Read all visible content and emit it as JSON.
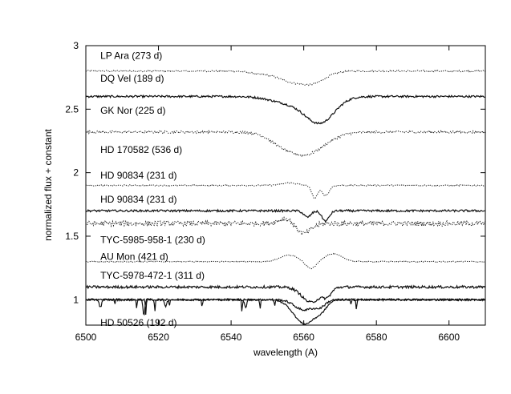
{
  "chart_data": {
    "type": "line",
    "title": "",
    "xlabel": "wavelength (A)",
    "ylabel": "normalized flux + constant",
    "xlim": [
      6500,
      6610
    ],
    "ylim": [
      0.8,
      3.0
    ],
    "xticks": [
      6500,
      6520,
      6540,
      6560,
      6580,
      6600
    ],
    "xtick_labels": [
      "6500",
      "6520",
      "6540",
      "6560",
      "6580",
      "6600"
    ],
    "yticks": [
      1.0,
      1.5,
      2.0,
      2.5,
      3.0
    ],
    "ytick_labels": [
      "1",
      "1.5",
      "2",
      "2.5",
      "3"
    ],
    "grid": false,
    "legend": "inline-labels",
    "series": [
      {
        "name": "LP Ara (273 d)",
        "label_y": 2.92,
        "style": "dotted",
        "baseline": 2.8,
        "noise": 0.006,
        "features": [
          [
            6556,
            -0.07,
            3.5
          ],
          [
            6562.5,
            -0.09,
            3.5
          ],
          [
            6548,
            -0.02,
            3
          ]
        ]
      },
      {
        "name": "DQ Vel (189 d)",
        "label_y": 2.74,
        "style": "solid",
        "baseline": 2.6,
        "noise": 0.008,
        "features": [
          [
            6564.5,
            -0.2,
            4.0
          ],
          [
            6556,
            -0.05,
            5
          ]
        ]
      },
      {
        "name": "GK Nor (225 d)",
        "label_y": 2.49,
        "style": "dotted",
        "baseline": 2.32,
        "noise": 0.01,
        "features": [
          [
            6560,
            -0.18,
            5.5
          ],
          [
            6553,
            -0.03,
            3
          ]
        ]
      },
      {
        "name": "HD 170582 (536 d)",
        "label_y": 2.18,
        "style": "dotted",
        "baseline": 1.9,
        "noise": 0.005,
        "features": [
          [
            6563,
            -0.1,
            0.8
          ],
          [
            6566,
            -0.08,
            1.0
          ],
          [
            6556,
            0.02,
            2
          ]
        ]
      },
      {
        "name": "HD 90834 (231 d)",
        "label_y": 1.98,
        "style": "solid",
        "baseline": 1.7,
        "noise": 0.008,
        "features": [
          [
            6566,
            -0.08,
            1.0
          ],
          [
            6561,
            -0.05,
            1.0
          ]
        ]
      },
      {
        "name": "HD 90834 (231 d)",
        "label_y": 1.79,
        "style": "dotted",
        "baseline": 1.6,
        "noise": 0.02,
        "features": [
          [
            6560,
            -0.08,
            2.0
          ],
          [
            6555,
            0.04,
            2
          ]
        ]
      },
      {
        "name": "TYC-5985-958-1 (230 d)",
        "label_y": 1.47,
        "style": "dotted",
        "baseline": 1.3,
        "noise": 0.004,
        "features": [
          [
            6556,
            0.05,
            2.5
          ],
          [
            6568,
            0.06,
            2.5
          ],
          [
            6562,
            -0.06,
            1.5
          ]
        ]
      },
      {
        "name": "AU Mon (421 d)",
        "label_y": 1.34,
        "style": "solid",
        "baseline": 1.1,
        "noise": 0.01,
        "features": [
          [
            6562,
            -0.12,
            2.5
          ],
          [
            6566.5,
            -0.06,
            1.2
          ]
        ]
      },
      {
        "name": "TYC-5978-472-1 (311 d)",
        "label_y": 1.19,
        "style": "solid",
        "baseline": 1.0,
        "noise": 0.008,
        "features": [
          [
            6560,
            -0.08,
            2.5
          ],
          [
            6564.5,
            -0.05,
            1.5
          ],
          [
            6516,
            -0.12,
            0.25
          ],
          [
            6504,
            -0.06,
            0.3
          ],
          [
            6522,
            -0.05,
            0.3
          ],
          [
            6544,
            -0.06,
            0.3
          ]
        ]
      },
      {
        "name": "HD 50526 (192 d)",
        "label_y": 0.82,
        "style": "solid",
        "baseline": null,
        "noise": 0,
        "features": []
      }
    ]
  }
}
